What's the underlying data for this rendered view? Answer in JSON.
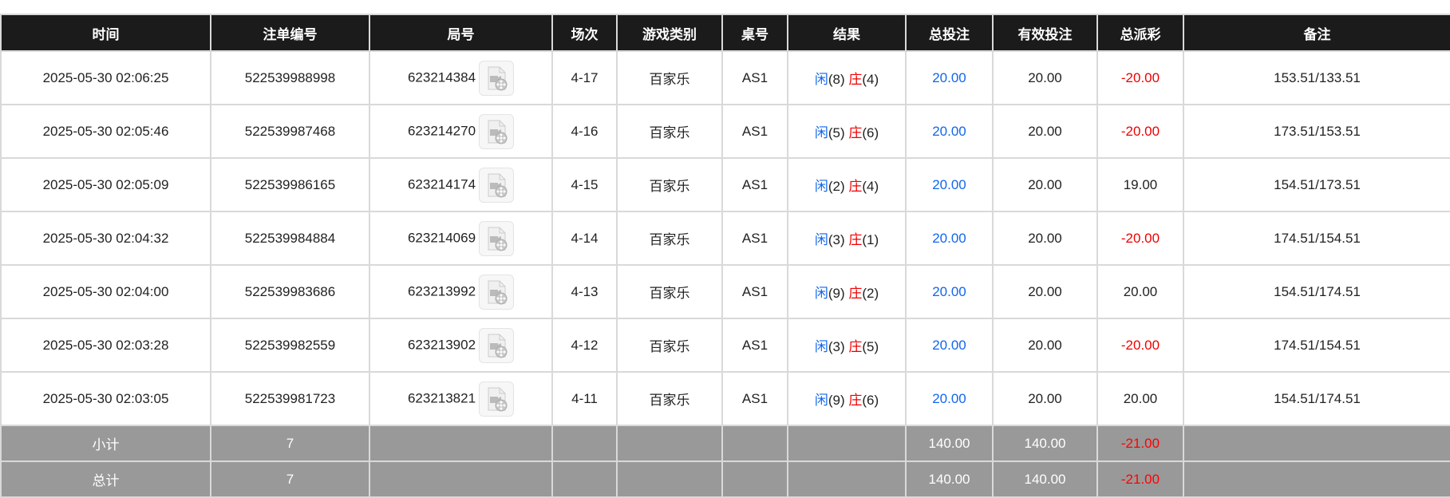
{
  "columns": [
    "时间",
    "注单编号",
    "局号",
    "场次",
    "游戏类别",
    "桌号",
    "结果",
    "总投注",
    "有效投注",
    "总派彩",
    "备注"
  ],
  "rows": [
    {
      "time": "2025-05-30 02:06:25",
      "bet_id": "522539988998",
      "round": "623214384",
      "session": "4-17",
      "game": "百家乐",
      "table": "AS1",
      "player_label": "闲",
      "player": "(8)",
      "banker_label": "庄",
      "banker": "(4)",
      "total_bet": "20.00",
      "valid_bet": "20.00",
      "payout": "-20.00",
      "payout_negative": true,
      "note": "153.51/133.51"
    },
    {
      "time": "2025-05-30 02:05:46",
      "bet_id": "522539987468",
      "round": "623214270",
      "session": "4-16",
      "game": "百家乐",
      "table": "AS1",
      "player_label": "闲",
      "player": "(5)",
      "banker_label": "庄",
      "banker": "(6)",
      "total_bet": "20.00",
      "valid_bet": "20.00",
      "payout": "-20.00",
      "payout_negative": true,
      "note": "173.51/153.51"
    },
    {
      "time": "2025-05-30 02:05:09",
      "bet_id": "522539986165",
      "round": "623214174",
      "session": "4-15",
      "game": "百家乐",
      "table": "AS1",
      "player_label": "闲",
      "player": "(2)",
      "banker_label": "庄",
      "banker": "(4)",
      "total_bet": "20.00",
      "valid_bet": "20.00",
      "payout": "19.00",
      "payout_negative": false,
      "note": "154.51/173.51"
    },
    {
      "time": "2025-05-30 02:04:32",
      "bet_id": "522539984884",
      "round": "623214069",
      "session": "4-14",
      "game": "百家乐",
      "table": "AS1",
      "player_label": "闲",
      "player": "(3)",
      "banker_label": "庄",
      "banker": "(1)",
      "total_bet": "20.00",
      "valid_bet": "20.00",
      "payout": "-20.00",
      "payout_negative": true,
      "note": "174.51/154.51"
    },
    {
      "time": "2025-05-30 02:04:00",
      "bet_id": "522539983686",
      "round": "623213992",
      "session": "4-13",
      "game": "百家乐",
      "table": "AS1",
      "player_label": "闲",
      "player": "(9)",
      "banker_label": "庄",
      "banker": "(2)",
      "total_bet": "20.00",
      "valid_bet": "20.00",
      "payout": "20.00",
      "payout_negative": false,
      "note": "154.51/174.51"
    },
    {
      "time": "2025-05-30 02:03:28",
      "bet_id": "522539982559",
      "round": "623213902",
      "session": "4-12",
      "game": "百家乐",
      "table": "AS1",
      "player_label": "闲",
      "player": "(3)",
      "banker_label": "庄",
      "banker": "(5)",
      "total_bet": "20.00",
      "valid_bet": "20.00",
      "payout": "-20.00",
      "payout_negative": true,
      "note": "174.51/154.51"
    },
    {
      "time": "2025-05-30 02:03:05",
      "bet_id": "522539981723",
      "round": "623213821",
      "session": "4-11",
      "game": "百家乐",
      "table": "AS1",
      "player_label": "闲",
      "player": "(9)",
      "banker_label": "庄",
      "banker": "(6)",
      "total_bet": "20.00",
      "valid_bet": "20.00",
      "payout": "20.00",
      "payout_negative": false,
      "note": "154.51/174.51"
    }
  ],
  "summary": [
    {
      "label": "小计",
      "count": "7",
      "total_bet": "140.00",
      "valid_bet": "140.00",
      "payout": "-21.00"
    },
    {
      "label": "总计",
      "count": "7",
      "total_bet": "140.00",
      "valid_bet": "140.00",
      "payout": "-21.00"
    }
  ],
  "icons": {
    "replay": "video-file-icon"
  },
  "colors": {
    "header_bg": "#1b1b1b",
    "player": "#1166ee",
    "banker": "#ee0000",
    "negative": "#ee0000",
    "summary_bg": "#999999"
  }
}
